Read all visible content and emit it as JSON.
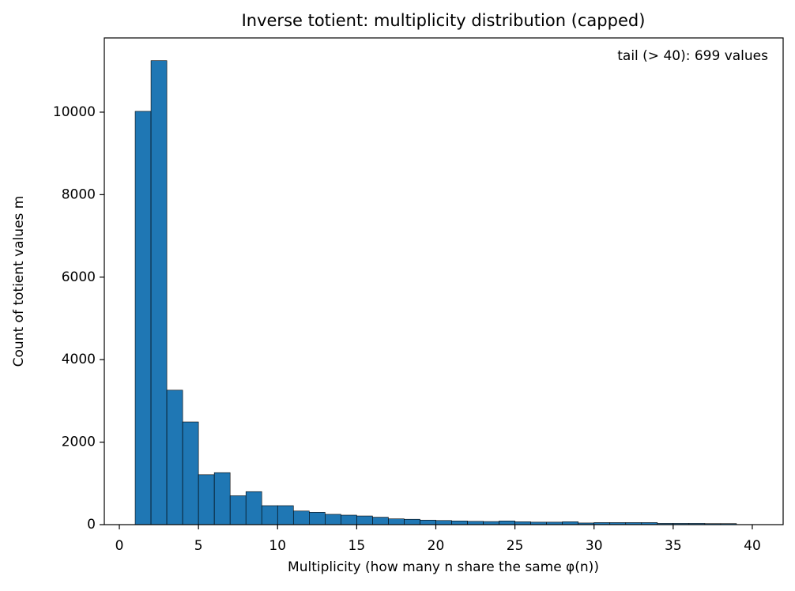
{
  "chart_data": {
    "type": "histogram",
    "title": "Inverse totient: multiplicity distribution (capped)",
    "annotation": "tail (> 40): 699 values",
    "x_label": "Multiplicity (how many n share the same φ(n))",
    "y_label": "Count of totient values m",
    "bins": [
      1,
      2,
      3,
      4,
      5,
      6,
      7,
      8,
      9,
      10,
      11,
      12,
      13,
      14,
      15,
      16,
      17,
      18,
      19,
      20,
      21,
      22,
      23,
      24,
      25,
      26,
      27,
      28,
      29,
      30,
      31,
      32,
      33,
      34,
      35,
      36,
      37,
      38,
      39,
      40
    ],
    "values": [
      10020,
      11250,
      3260,
      2490,
      1210,
      1260,
      700,
      800,
      460,
      460,
      330,
      300,
      250,
      230,
      210,
      180,
      140,
      130,
      110,
      100,
      90,
      80,
      75,
      90,
      70,
      60,
      60,
      70,
      40,
      50,
      50,
      50,
      50,
      30,
      30,
      30,
      25,
      25,
      0
    ],
    "color": "#1f77b4",
    "xlim": [
      -0.95,
      41.95
    ],
    "ylim": [
      0,
      11800
    ],
    "xticks": [
      0,
      5,
      10,
      15,
      20,
      25,
      30,
      35,
      40
    ],
    "yticks": [
      0,
      2000,
      4000,
      6000,
      8000,
      10000
    ]
  }
}
